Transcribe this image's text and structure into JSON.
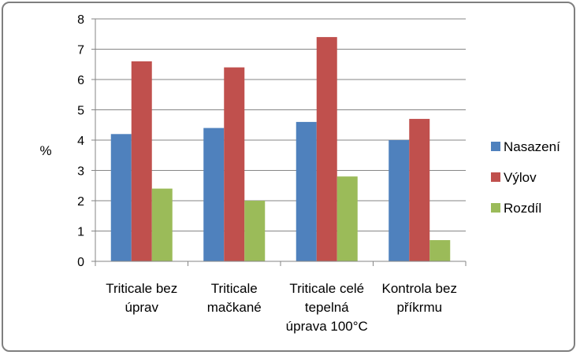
{
  "chart_data": {
    "type": "bar",
    "title": "",
    "xlabel": "",
    "ylabel": "%",
    "ylim": [
      0,
      8
    ],
    "yticks": [
      0,
      1,
      2,
      3,
      4,
      5,
      6,
      7,
      8
    ],
    "grid": true,
    "legend_position": "right",
    "categories": [
      [
        "Triticale bez",
        "úprav"
      ],
      [
        "Triticale",
        "mačkané"
      ],
      [
        "Triticale celé",
        "tepelná",
        "úprava 100°C"
      ],
      [
        "Kontrola bez",
        "příkrmu"
      ]
    ],
    "series": [
      {
        "name": "Nasazení",
        "color": "#4f81bd",
        "values": [
          4.2,
          4.4,
          4.6,
          4.0
        ]
      },
      {
        "name": "Výlov",
        "color": "#c0504d",
        "values": [
          6.6,
          6.4,
          7.4,
          4.7
        ]
      },
      {
        "name": "Rozdíl",
        "color": "#9bbb59",
        "values": [
          2.4,
          2.0,
          2.8,
          0.7
        ]
      }
    ]
  }
}
